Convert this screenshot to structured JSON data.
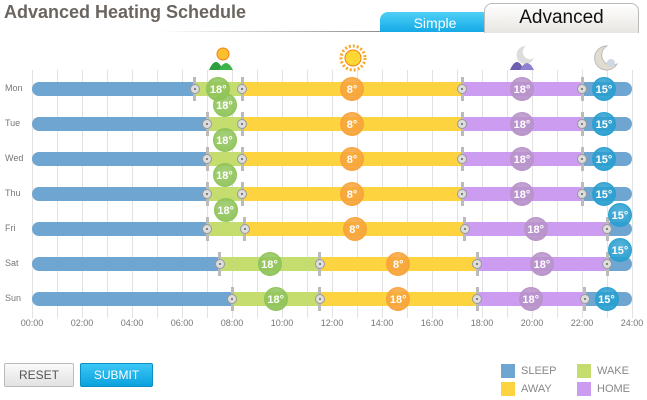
{
  "header": {
    "title": "Advanced Heating Schedule",
    "tab_simple": "Simple",
    "tab_advanced": "Advanced"
  },
  "colors": {
    "sleep": "#6fa6d1",
    "wake": "#c4dd6e",
    "away": "#fdd33f",
    "home": "#cc9cf0",
    "b_wake": "#8fc45a",
    "b_away": "#f7a43b",
    "b_home": "#b893c9",
    "b_sleep": "#2a9fd0"
  },
  "icons": [
    "sunrise-hills-icon",
    "sun-icon",
    "night-hills-icon",
    "moon-icon"
  ],
  "schedule": [
    {
      "day": "Mon",
      "times": [
        6.5,
        8.4,
        17.2,
        22.0
      ],
      "temps": [
        "18°",
        "8°",
        "18°",
        "15°"
      ]
    },
    {
      "day": "Tue",
      "times": [
        7.0,
        8.4,
        17.2,
        22.0
      ],
      "temps": [
        "18°",
        "8°",
        "18°",
        "15°"
      ]
    },
    {
      "day": "Wed",
      "times": [
        7.0,
        8.4,
        17.2,
        22.0
      ],
      "temps": [
        "18°",
        "8°",
        "18°",
        "15°"
      ]
    },
    {
      "day": "Thu",
      "times": [
        7.0,
        8.4,
        17.2,
        22.0
      ],
      "temps": [
        "18°",
        "8°",
        "18°",
        "15°"
      ]
    },
    {
      "day": "Fri",
      "times": [
        7.0,
        8.5,
        17.3,
        23.0
      ],
      "temps": [
        "18°",
        "8°",
        "18°",
        "15°"
      ]
    },
    {
      "day": "Sat",
      "times": [
        7.5,
        11.5,
        17.8,
        23.0
      ],
      "temps": [
        "18°",
        "8°",
        "18°",
        "15°"
      ]
    },
    {
      "day": "Sun",
      "times": [
        8.0,
        11.5,
        17.8,
        22.1
      ],
      "temps": [
        "18°",
        "18°",
        "18°",
        "15°"
      ]
    }
  ],
  "axis": [
    "00:00",
    "02:00",
    "04:00",
    "06:00",
    "08:00",
    "10:00",
    "12:00",
    "14:00",
    "16:00",
    "18:00",
    "20:00",
    "22:00",
    "24:00"
  ],
  "buttons": {
    "reset": "RESET",
    "submit": "SUBMIT"
  },
  "legend": [
    {
      "label": "SLEEP",
      "color": "#6fa6d1"
    },
    {
      "label": "WAKE",
      "color": "#c4dd6e"
    },
    {
      "label": "AWAY",
      "color": "#fdd33f"
    },
    {
      "label": "HOME",
      "color": "#cc9cf0"
    }
  ]
}
